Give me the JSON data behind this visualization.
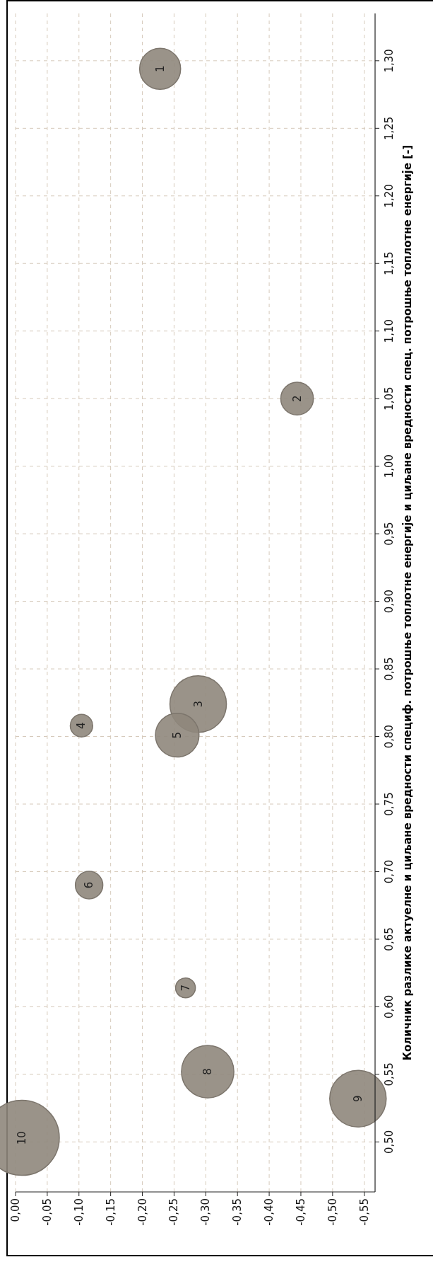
{
  "chart_data": {
    "type": "bubble",
    "ylabel": "Количник разлике актуелне и циљане вредности специф. потрошње топлотне енергије и циљане вредности спец. потрошње топлотне енергије [-]",
    "ylim": [
      0.463,
      1.335
    ],
    "xlim": [
      0,
      -0.567
    ],
    "yticks": [
      {
        "value": 0.5,
        "label": "0,50"
      },
      {
        "value": 0.55,
        "label": "0,55"
      },
      {
        "value": 0.6,
        "label": "0,60"
      },
      {
        "value": 0.65,
        "label": "0,65"
      },
      {
        "value": 0.7,
        "label": "0,70"
      },
      {
        "value": 0.75,
        "label": "0,75"
      },
      {
        "value": 0.8,
        "label": "0,80"
      },
      {
        "value": 0.85,
        "label": "0,85"
      },
      {
        "value": 0.9,
        "label": "0,90"
      },
      {
        "value": 0.95,
        "label": "0,95"
      },
      {
        "value": 1.0,
        "label": "1,00"
      },
      {
        "value": 1.05,
        "label": "1,05"
      },
      {
        "value": 1.1,
        "label": "1,10"
      },
      {
        "value": 1.15,
        "label": "1,15"
      },
      {
        "value": 1.2,
        "label": "1,20"
      },
      {
        "value": 1.25,
        "label": "1,25"
      },
      {
        "value": 1.3,
        "label": "1,30"
      }
    ],
    "xticks": [
      {
        "value": 0,
        "label": "0,00"
      },
      {
        "value": -0.05,
        "label": "-0,05"
      },
      {
        "value": -0.1,
        "label": "-0,10"
      },
      {
        "value": -0.15,
        "label": "-0,15"
      },
      {
        "value": -0.2,
        "label": "-0,20"
      },
      {
        "value": -0.25,
        "label": "-0,25"
      },
      {
        "value": -0.3,
        "label": "-0,30"
      },
      {
        "value": -0.35,
        "label": "-0,35"
      },
      {
        "value": -0.4,
        "label": "-0,40"
      },
      {
        "value": -0.45,
        "label": "-0,45"
      },
      {
        "value": -0.5,
        "label": "-0,50"
      },
      {
        "value": -0.55,
        "label": "-0,55"
      }
    ],
    "grid": true,
    "series": [
      {
        "color": "#8f877c",
        "x": [
          -0.228,
          -0.444,
          -0.288,
          -0.104,
          -0.255,
          -0.116,
          -0.268,
          -0.303,
          -0.54,
          -0.01
        ],
        "values": [
          1.294,
          1.05,
          0.824,
          0.808,
          0.801,
          0.69,
          0.614,
          0.552,
          0.532,
          0.503
        ],
        "sizes": [
          0.3,
          0.19,
          0.57,
          0.09,
          0.34,
          0.135,
          0.07,
          0.49,
          0.57,
          1
        ]
      }
    ],
    "annotations": [
      {
        "text": "1",
        "x": -0.228,
        "y": 1.294
      },
      {
        "text": "2",
        "x": -0.444,
        "y": 1.05
      },
      {
        "text": "3",
        "x": -0.288,
        "y": 0.824
      },
      {
        "text": "4",
        "x": -0.104,
        "y": 0.808
      },
      {
        "text": "5",
        "x": -0.255,
        "y": 0.801
      },
      {
        "text": "6",
        "x": -0.116,
        "y": 0.69
      },
      {
        "text": "7",
        "x": -0.268,
        "y": 0.614
      },
      {
        "text": "8",
        "x": -0.303,
        "y": 0.552
      },
      {
        "text": "9",
        "x": -0.54,
        "y": 0.532
      },
      {
        "text": "10",
        "x": -0.01,
        "y": 0.503
      }
    ]
  }
}
